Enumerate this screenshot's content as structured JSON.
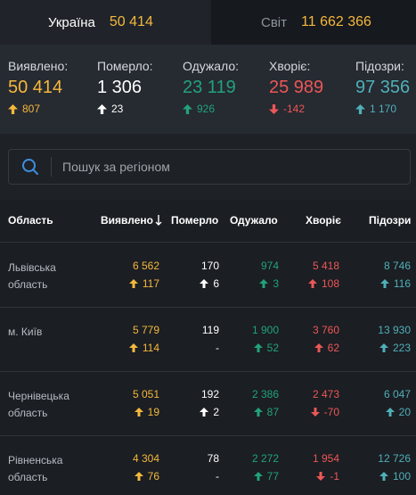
{
  "colors": {
    "yellow": "#f5b83d",
    "white": "#ffffff",
    "green": "#21a37a",
    "red": "#ec5757",
    "teal": "#4fb0b8"
  },
  "tabs": {
    "ukraine": {
      "label": "Україна",
      "value": "50 414"
    },
    "world": {
      "label": "Світ",
      "value": "11 662 366"
    }
  },
  "stats": {
    "confirmed": {
      "label": "Виявлено:",
      "value": "50 414",
      "delta": "807"
    },
    "deaths": {
      "label": "Померло:",
      "value": "1 306",
      "delta": "23"
    },
    "recovered": {
      "label": "Одужало:",
      "value": "23 119",
      "delta": "926"
    },
    "sick": {
      "label": "Хворіє:",
      "value": "25 989",
      "delta": "-142"
    },
    "suspected": {
      "label": "Підозри:",
      "value": "97 356",
      "delta": "1 170"
    }
  },
  "search": {
    "placeholder": "Пошук за регіоном"
  },
  "table": {
    "headers": {
      "region": "Область",
      "confirmed": "Виявлено",
      "deaths": "Померло",
      "recovered": "Одужало",
      "sick": "Хворіє",
      "suspected": "Підозри"
    },
    "sort_icon": "arrow-down-icon",
    "rows": [
      {
        "region": "Львівська область",
        "confirmed": "6 562",
        "confirmed_d": "117",
        "deaths": "170",
        "deaths_d": "6",
        "recovered": "974",
        "recovered_d": "3",
        "sick": "5 418",
        "sick_d": "108",
        "sick_dir": "up",
        "suspected": "8 746",
        "suspected_d": "116"
      },
      {
        "region": "м. Київ",
        "confirmed": "5 779",
        "confirmed_d": "114",
        "deaths": "119",
        "deaths_d": "-",
        "recovered": "1 900",
        "recovered_d": "52",
        "sick": "3 760",
        "sick_d": "62",
        "sick_dir": "up",
        "suspected": "13 930",
        "suspected_d": "223"
      },
      {
        "region": "Чернівецька область",
        "confirmed": "5 051",
        "confirmed_d": "19",
        "deaths": "192",
        "deaths_d": "2",
        "recovered": "2 386",
        "recovered_d": "87",
        "sick": "2 473",
        "sick_d": "-70",
        "sick_dir": "down",
        "suspected": "6 047",
        "suspected_d": "20"
      },
      {
        "region": "Рівненська область",
        "confirmed": "4 304",
        "confirmed_d": "76",
        "deaths": "78",
        "deaths_d": "-",
        "recovered": "2 272",
        "recovered_d": "77",
        "sick": "1 954",
        "sick_d": "-1",
        "sick_dir": "down",
        "suspected": "12 726",
        "suspected_d": "100"
      }
    ]
  }
}
